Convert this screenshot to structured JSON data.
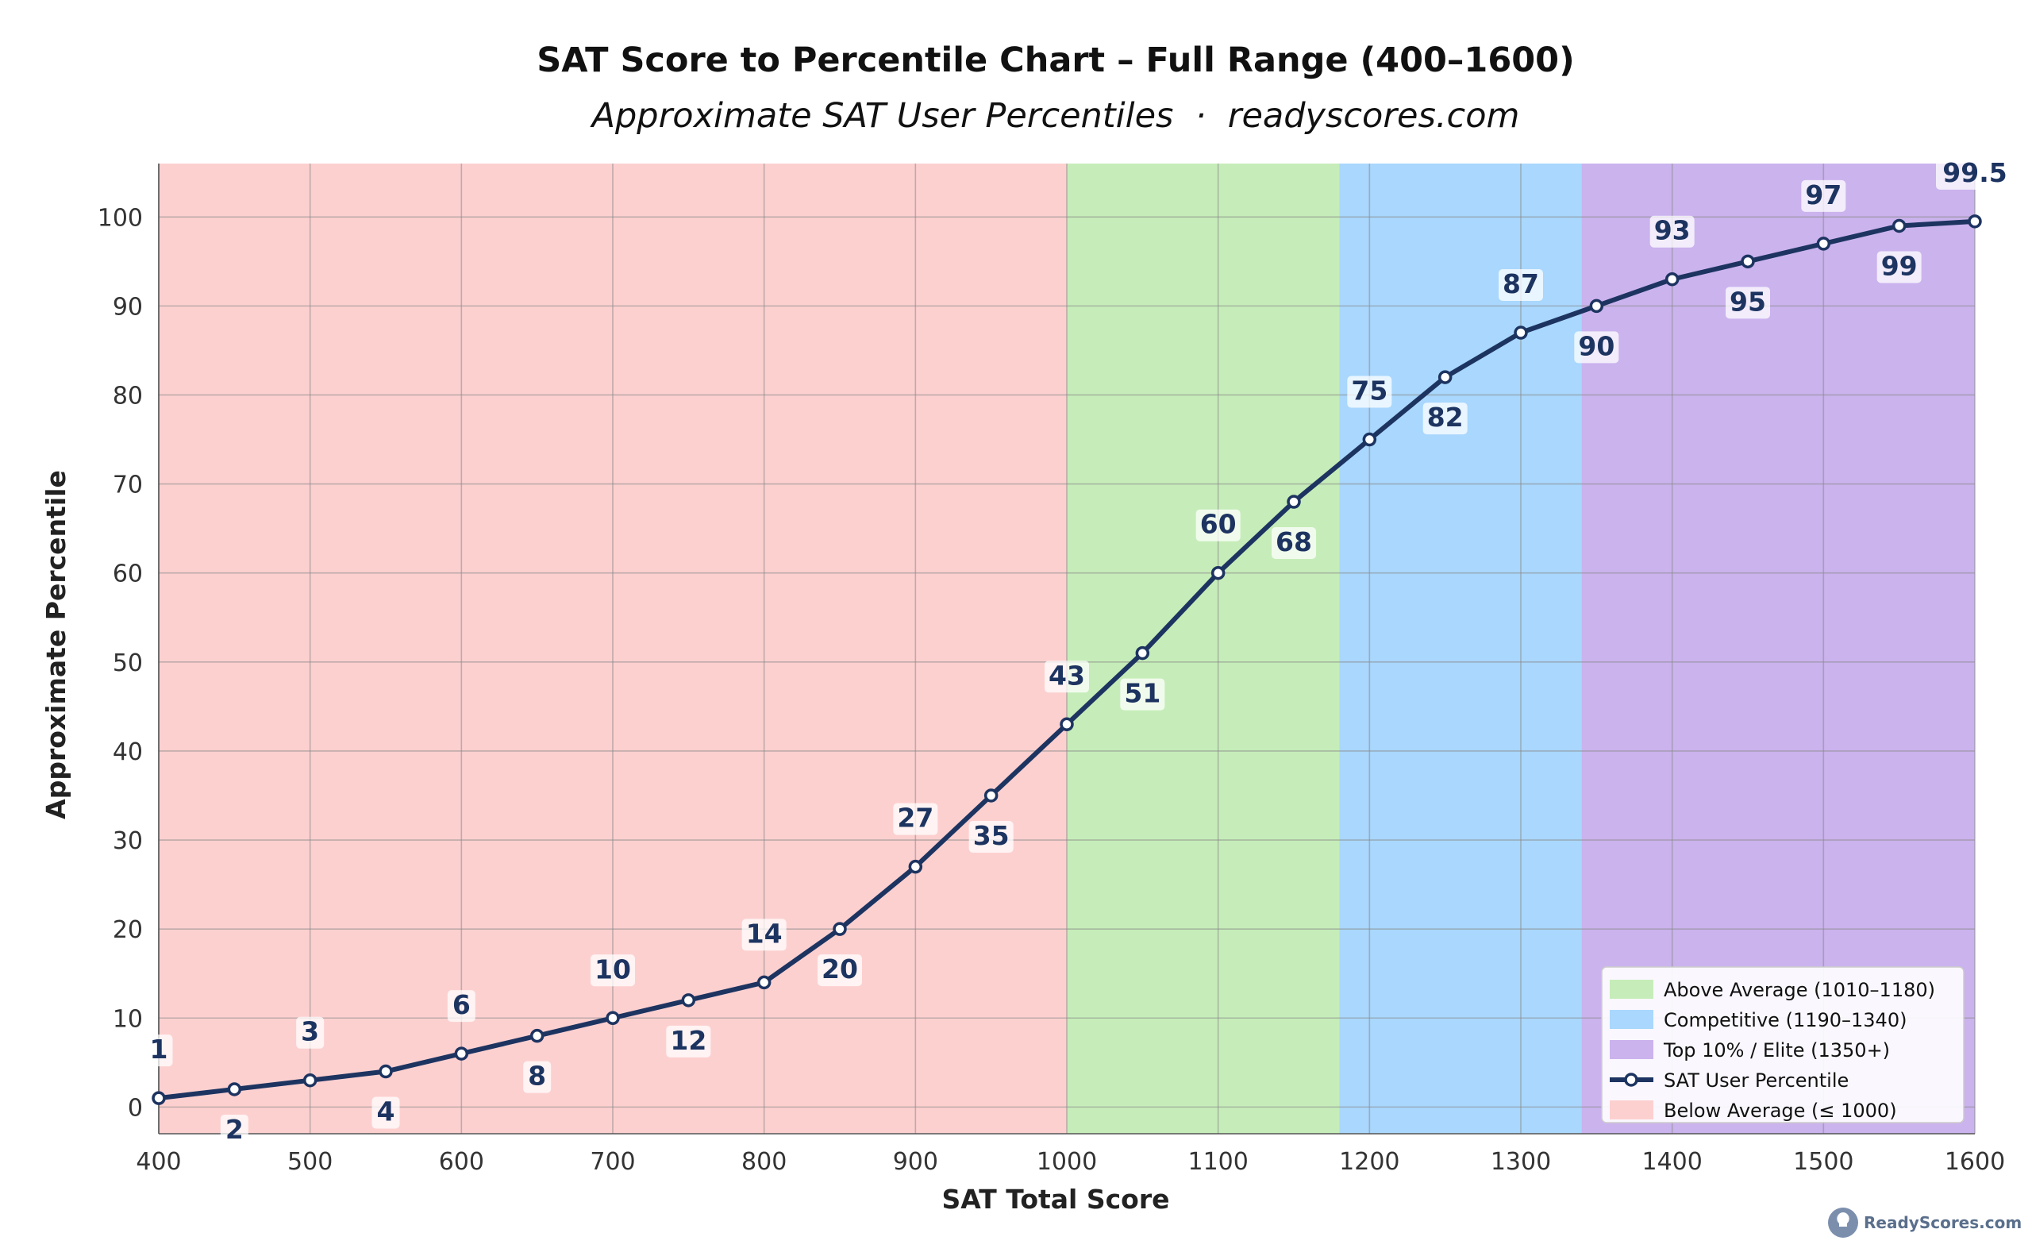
{
  "chart_data": {
    "type": "line",
    "title": "SAT Score to Percentile Chart – Full Range (400–1600)",
    "subtitle": "Approximate SAT User Percentiles  ·  readyscores.com",
    "xlabel": "SAT Total Score",
    "ylabel": "Approximate Percentile",
    "xlim": [
      400,
      1600
    ],
    "ylim": [
      -3,
      106
    ],
    "xticks": [
      400,
      500,
      600,
      700,
      800,
      900,
      1000,
      1100,
      1200,
      1300,
      1400,
      1500,
      1600
    ],
    "yticks": [
      0,
      10,
      20,
      30,
      40,
      50,
      60,
      70,
      80,
      90,
      100
    ],
    "grid": true,
    "legend_position": "lower-right",
    "bands": [
      {
        "name": "Below Average (≤ 1000)",
        "x0": 400,
        "x1": 1000,
        "color": "#fdd0d0"
      },
      {
        "name": "Above Average (1010–1180)",
        "x0": 1000,
        "x1": 1180,
        "color": "#c6edb9"
      },
      {
        "name": "Competitive (1190–1340)",
        "x0": 1180,
        "x1": 1340,
        "color": "#a9d7fd"
      },
      {
        "name": "Top 10% / Elite (1350+)",
        "x0": 1340,
        "x1": 1600,
        "color": "#cbb3ee"
      }
    ],
    "series": [
      {
        "name": "SAT User Percentile",
        "color": "#1d3461",
        "x": [
          400,
          450,
          500,
          550,
          600,
          650,
          700,
          750,
          800,
          850,
          900,
          950,
          1000,
          1050,
          1100,
          1150,
          1200,
          1250,
          1300,
          1350,
          1400,
          1450,
          1500,
          1550,
          1600
        ],
        "y": [
          1,
          2,
          3,
          4,
          6,
          8,
          10,
          12,
          14,
          20,
          27,
          35,
          43,
          51,
          60,
          68,
          75,
          82,
          87,
          90,
          93,
          95,
          97,
          99,
          99.5
        ],
        "labels": [
          "1",
          "2",
          "3",
          "4",
          "6",
          "8",
          "10",
          "12",
          "14",
          "20",
          "27",
          "35",
          "43",
          "51",
          "60",
          "68",
          "75",
          "82",
          "87",
          "90",
          "93",
          "95",
          "97",
          "99",
          "99.5"
        ]
      }
    ],
    "legend": [
      {
        "label": "Above Average (1010–1180)",
        "kind": "band",
        "color": "#c6edb9"
      },
      {
        "label": "Competitive (1190–1340)",
        "kind": "band",
        "color": "#a9d7fd"
      },
      {
        "label": "Top 10% / Elite (1350+)",
        "kind": "band",
        "color": "#cbb3ee"
      },
      {
        "label": "SAT User Percentile",
        "kind": "line",
        "color": "#1d3461"
      },
      {
        "label": "Below Average (≤ 1000)",
        "kind": "band",
        "color": "#fdd0d0"
      }
    ]
  },
  "watermark": {
    "text": "ReadyScores.com",
    "icon": "lightbulb-icon"
  }
}
